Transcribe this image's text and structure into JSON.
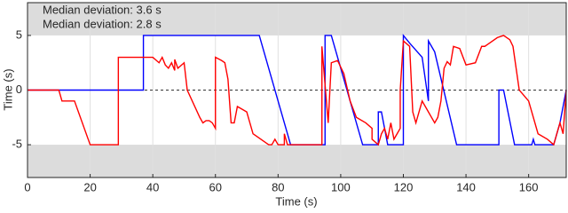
{
  "chart_data": {
    "type": "line",
    "xlabel": "Time (s)",
    "ylabel": "Time (s)",
    "xlim": [
      0,
      172
    ],
    "ylim": [
      -8,
      8
    ],
    "xticks": [
      0,
      20,
      40,
      60,
      80,
      100,
      120,
      140,
      160
    ],
    "yticks": [
      -5,
      0,
      5
    ],
    "grid": true,
    "series": [
      {
        "name": "Median deviation: 3.6 s",
        "color": "#0000ff",
        "x": [
          0,
          37,
          37,
          74,
          84,
          95,
          95,
          97,
          107,
          112,
          112,
          113,
          115,
          120,
          120,
          122,
          126,
          128,
          128,
          130,
          137,
          150.5,
          150.5,
          152,
          155.5,
          161,
          161.5,
          162,
          168,
          170,
          172
        ],
        "values": [
          0,
          0,
          5,
          5,
          -5,
          -5,
          5,
          5,
          -5,
          -5,
          -2,
          -2,
          -5,
          -5,
          5,
          4.3,
          3,
          -1,
          4.5,
          3.5,
          -5,
          -5,
          0,
          0,
          -5,
          -5,
          -4.5,
          -5,
          -5,
          -3,
          0
        ]
      },
      {
        "name": "Median deviation: 2.8 s",
        "color": "#ff0000",
        "x": [
          0,
          10,
          11,
          15,
          20,
          29,
          29,
          38,
          40,
          42,
          43,
          44,
          45,
          46,
          47,
          47,
          48,
          50,
          51,
          55,
          56,
          57,
          58,
          59,
          60,
          60,
          62,
          63,
          64,
          65,
          66,
          67,
          70,
          72,
          77,
          78,
          79,
          80,
          82,
          82,
          83,
          94,
          94,
          96,
          97,
          99,
          101,
          103,
          105,
          108,
          110,
          110,
          112,
          113,
          114,
          115,
          116,
          117,
          118,
          119,
          119,
          120,
          122,
          123,
          124,
          126,
          128,
          130,
          131,
          132,
          133,
          134,
          135,
          136,
          138,
          140,
          143,
          145,
          146,
          147,
          150,
          152,
          154,
          155,
          157,
          160,
          163,
          166,
          168,
          170,
          171,
          172
        ],
        "values": [
          0,
          0,
          -1,
          -1,
          -5,
          -5,
          3,
          3,
          3,
          2.5,
          3,
          2.3,
          2,
          2.5,
          1.8,
          2.8,
          2,
          2.5,
          0,
          -2.5,
          -3,
          -2.8,
          -2.8,
          -3,
          -3.5,
          3,
          2.7,
          2.5,
          1,
          -3,
          -3,
          -1.5,
          -2,
          -4,
          -5,
          -5,
          -4.5,
          -5,
          -5,
          -4,
          -5,
          -5,
          4,
          -3,
          2.5,
          2.7,
          1.5,
          -1,
          -2.5,
          -3,
          -3.5,
          -4.5,
          -5,
          -4,
          -3.5,
          -4.5,
          -3,
          -4.5,
          -4,
          -3.5,
          0,
          4.5,
          4,
          -2,
          -3,
          -1,
          -2,
          -3,
          -2.5,
          -1,
          2,
          2.6,
          2.3,
          4,
          3.8,
          2.3,
          2.5,
          4,
          4,
          4.2,
          4.8,
          5,
          4.6,
          4,
          0,
          -1,
          -4,
          -4.5,
          -5,
          -3,
          -4,
          0
        ]
      }
    ]
  }
}
